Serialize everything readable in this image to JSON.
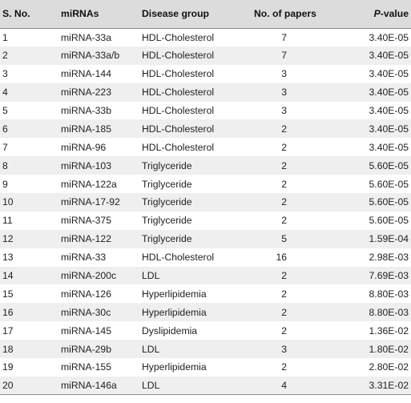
{
  "table": {
    "headers": {
      "sno": "S. No.",
      "mirnas": "miRNAs",
      "disease_group": "Disease group",
      "no_of_papers": "No. of papers",
      "pvalue_italic": "P",
      "pvalue_rest": "-value"
    },
    "rows": [
      {
        "sno": "1",
        "mirna": "miRNA-33a",
        "disease": "HDL-Cholesterol",
        "papers": "7",
        "pvalue": "3.40E-05"
      },
      {
        "sno": "2",
        "mirna": "miRNA-33a/b",
        "disease": "HDL-Cholesterol",
        "papers": "7",
        "pvalue": "3.40E-05"
      },
      {
        "sno": "3",
        "mirna": "miRNA-144",
        "disease": "HDL-Cholesterol",
        "papers": "3",
        "pvalue": "3.40E-05"
      },
      {
        "sno": "4",
        "mirna": "miRNA-223",
        "disease": "HDL-Cholesterol",
        "papers": "3",
        "pvalue": "3.40E-05"
      },
      {
        "sno": "5",
        "mirna": "miRNA-33b",
        "disease": "HDL-Cholesterol",
        "papers": "3",
        "pvalue": "3.40E-05"
      },
      {
        "sno": "6",
        "mirna": "miRNA-185",
        "disease": "HDL-Cholesterol",
        "papers": "2",
        "pvalue": "3.40E-05"
      },
      {
        "sno": "7",
        "mirna": "miRNA-96",
        "disease": "HDL-Cholesterol",
        "papers": "2",
        "pvalue": "3.40E-05"
      },
      {
        "sno": "8",
        "mirna": "miRNA-103",
        "disease": "Triglyceride",
        "papers": "2",
        "pvalue": "5.60E-05"
      },
      {
        "sno": "9",
        "mirna": "miRNA-122a",
        "disease": "Triglyceride",
        "papers": "2",
        "pvalue": "5.60E-05"
      },
      {
        "sno": "10",
        "mirna": "miRNA-17-92",
        "disease": "Triglyceride",
        "papers": "2",
        "pvalue": "5.60E-05"
      },
      {
        "sno": "11",
        "mirna": "miRNA-375",
        "disease": "Triglyceride",
        "papers": "2",
        "pvalue": "5.60E-05"
      },
      {
        "sno": "12",
        "mirna": "miRNA-122",
        "disease": "Triglyceride",
        "papers": "5",
        "pvalue": "1.59E-04"
      },
      {
        "sno": "13",
        "mirna": "miRNA-33",
        "disease": "HDL-Cholesterol",
        "papers": "16",
        "pvalue": "2.98E-03"
      },
      {
        "sno": "14",
        "mirna": "miRNA-200c",
        "disease": "LDL",
        "papers": "2",
        "pvalue": "7.69E-03"
      },
      {
        "sno": "15",
        "mirna": "miRNA-126",
        "disease": "Hyperlipidemia",
        "papers": "2",
        "pvalue": "8.80E-03"
      },
      {
        "sno": "16",
        "mirna": "miRNA-30c",
        "disease": "Hyperlipidemia",
        "papers": "2",
        "pvalue": "8.80E-03"
      },
      {
        "sno": "17",
        "mirna": "miRNA-145",
        "disease": "Dyslipidemia",
        "papers": "2",
        "pvalue": "1.36E-02"
      },
      {
        "sno": "18",
        "mirna": "miRNA-29b",
        "disease": "LDL",
        "papers": "3",
        "pvalue": "1.80E-02"
      },
      {
        "sno": "19",
        "mirna": "miRNA-155",
        "disease": "Hyperlipidemia",
        "papers": "2",
        "pvalue": "2.80E-02"
      },
      {
        "sno": "20",
        "mirna": "miRNA-146a",
        "disease": "LDL",
        "papers": "4",
        "pvalue": "3.31E-02"
      }
    ]
  }
}
